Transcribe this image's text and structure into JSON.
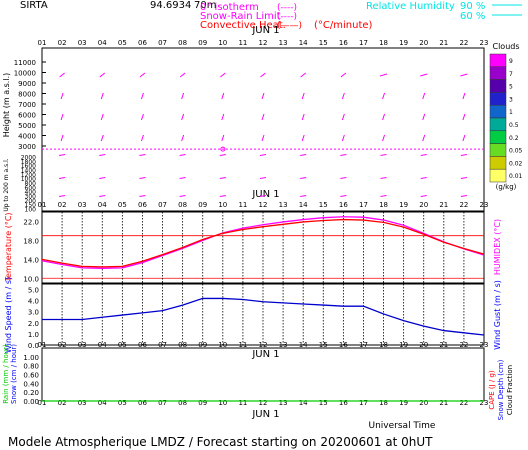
{
  "header": {
    "station": "SIRTA",
    "coords": "94.6934",
    "coords_suffix": "70m",
    "legend_isotherm": "0° isotherm",
    "legend_snowrain": "Snow-Rain Limit",
    "legend_convective": "Convective Heat.",
    "legend_dash": "(----)",
    "legend_solid": "(——)",
    "legend_units": "(°C/minute)",
    "rh_label": "Relative Humidity",
    "rh_90": "90 %",
    "rh_60": "60 %"
  },
  "footer": {
    "universal_time": "Universal Time",
    "title": "Modele Atmospherique LMDZ / Forecast starting on 20200601 at 0hUT"
  },
  "date_label": "JUN   1",
  "hours": [
    "01",
    "02",
    "03",
    "04",
    "05",
    "06",
    "07",
    "08",
    "09",
    "10",
    "11",
    "12",
    "13",
    "14",
    "15",
    "16",
    "17",
    "18",
    "19",
    "20",
    "21",
    "22",
    "23"
  ],
  "colors": {
    "temperature": "#ff0000",
    "humidex": "#ff00ff",
    "wind": "#0000cc",
    "rain": "#00cc00",
    "snow": "#0000ff",
    "wind_labels": "#0000ff",
    "rh": "#00e5e5"
  },
  "chart_data": [
    {
      "type": "barbs",
      "id": "upper-air",
      "ylabel": "Height (m a.s.l.)",
      "ylabel_small": "Up to 200 m a.s.l.",
      "yticks_upper": [
        11000,
        10000,
        9000,
        8000,
        7000,
        6000,
        5000,
        4000,
        3000
      ],
      "yticks_lower": [
        2000,
        1800,
        1600,
        1400,
        1200,
        1000,
        800,
        600,
        400,
        300,
        200,
        150,
        100
      ],
      "isotherm_height_m": 2700,
      "isotherm_marker_hour": "10",
      "clouds": {
        "title": "Clouds",
        "units": "(g/kg)",
        "levels": [
          "9",
          "7",
          "5",
          "3",
          "1",
          "0.5",
          "0.2",
          "0.05",
          "0.02",
          "0.01"
        ],
        "colors": [
          "#ff00ff",
          "#9900cc",
          "#5500aa",
          "#2222cc",
          "#1166cc",
          "#00aa99",
          "#00cc44",
          "#66dd22",
          "#cccc00",
          "#ffff66"
        ]
      }
    },
    {
      "type": "line",
      "id": "temperature",
      "ylabel": "Temperature (°C)",
      "ylabel_right": "HUMIDEX (°C)",
      "yticks": [
        "22.0",
        "18.0",
        "14.0",
        "10.0"
      ],
      "ylim": [
        9,
        24
      ],
      "reference_lines": [
        10,
        19
      ],
      "x": [
        "01",
        "02",
        "03",
        "04",
        "05",
        "06",
        "07",
        "08",
        "09",
        "10",
        "11",
        "12",
        "13",
        "14",
        "15",
        "16",
        "17",
        "18",
        "19",
        "20",
        "21",
        "22",
        "23"
      ],
      "series": [
        {
          "name": "Temperature",
          "values": [
            14.0,
            13.2,
            12.5,
            12.4,
            12.5,
            13.6,
            15.0,
            16.5,
            18.2,
            19.5,
            20.3,
            20.9,
            21.4,
            21.9,
            22.2,
            22.4,
            22.3,
            21.8,
            20.8,
            19.3,
            17.6,
            16.3,
            15.1
          ]
        },
        {
          "name": "Humidex",
          "values": [
            13.7,
            12.9,
            12.2,
            12.1,
            12.2,
            13.3,
            14.8,
            16.3,
            18.0,
            19.6,
            20.6,
            21.3,
            21.9,
            22.4,
            22.8,
            23.0,
            22.9,
            22.3,
            21.2,
            19.5,
            17.7,
            16.2,
            14.9
          ]
        }
      ]
    },
    {
      "type": "line",
      "id": "wind",
      "ylabel": "Wind Speed (m / s)",
      "ylabel_right": "Wind Gust (m / s)",
      "yticks": [
        "5.0",
        "4.0",
        "3.0",
        "2.0",
        "1.0",
        "0.0"
      ],
      "ylim": [
        0,
        5.5
      ],
      "x": [
        "01",
        "02",
        "03",
        "04",
        "05",
        "06",
        "07",
        "08",
        "09",
        "10",
        "11",
        "12",
        "13",
        "14",
        "15",
        "16",
        "17",
        "18",
        "19",
        "20",
        "21",
        "22",
        "23"
      ],
      "series": [
        {
          "name": "Wind Speed",
          "values": [
            2.3,
            2.3,
            2.3,
            2.5,
            2.7,
            2.9,
            3.1,
            3.6,
            4.2,
            4.2,
            4.1,
            3.9,
            3.8,
            3.7,
            3.6,
            3.5,
            3.5,
            2.8,
            2.2,
            1.7,
            1.3,
            1.1,
            0.9
          ]
        }
      ]
    },
    {
      "type": "line",
      "id": "precipitation",
      "ylabel_rain": "Rain (mm / hour)",
      "ylabel_snow": "Snow (cm / hour)",
      "ylabel_cape": "CAPE (J / g)",
      "ylabel_snowdepth": "Snow Depth (cm)",
      "ylabel_cloud": "Cloud Fraction",
      "yticks": [
        "1.00",
        "0.80",
        "0.60",
        "0.40",
        "0.20",
        "0.00"
      ],
      "ylim": [
        0,
        1.2
      ],
      "x": [
        "01",
        "02",
        "03",
        "04",
        "05",
        "06",
        "07",
        "08",
        "09",
        "10",
        "11",
        "12",
        "13",
        "14",
        "15",
        "16",
        "17",
        "18",
        "19",
        "20",
        "21",
        "22",
        "23"
      ],
      "series": [
        {
          "name": "Rain",
          "values": [
            0,
            0,
            0,
            0,
            0,
            0,
            0,
            0,
            0,
            0,
            0,
            0,
            0,
            0,
            0,
            0,
            0,
            0,
            0,
            0,
            0,
            0,
            0
          ]
        }
      ]
    }
  ]
}
